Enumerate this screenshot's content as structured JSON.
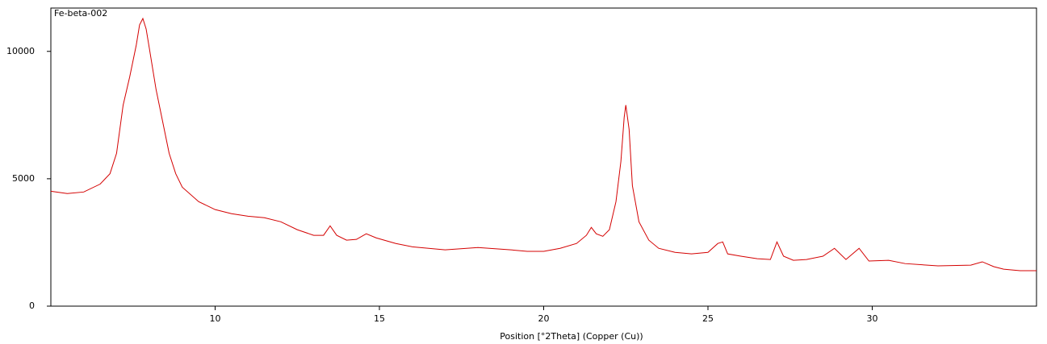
{
  "chart_data": {
    "type": "line",
    "title": "Fe-beta-002",
    "xlabel": "Position [°2Theta] (Copper (Cu))",
    "x": [
      5.0,
      5.5,
      6.0,
      6.5,
      6.8,
      7.0,
      7.2,
      7.4,
      7.6,
      7.7,
      7.8,
      7.9,
      8.0,
      8.2,
      8.4,
      8.6,
      8.8,
      9.0,
      9.5,
      10.0,
      10.5,
      11.0,
      11.5,
      12.0,
      12.5,
      13.0,
      13.3,
      13.5,
      13.7,
      14.0,
      14.3,
      14.6,
      14.9,
      15.5,
      16.0,
      17.0,
      18.0,
      19.0,
      19.5,
      20.0,
      20.5,
      21.0,
      21.3,
      21.45,
      21.6,
      21.8,
      22.0,
      22.2,
      22.35,
      22.45,
      22.5,
      22.6,
      22.7,
      22.9,
      23.2,
      23.5,
      24.0,
      24.5,
      25.0,
      25.3,
      25.45,
      25.6,
      26.0,
      26.5,
      26.9,
      27.1,
      27.3,
      27.6,
      28.0,
      28.5,
      28.85,
      29.2,
      29.6,
      29.9,
      30.5,
      31.0,
      32.0,
      33.0,
      33.35,
      33.7,
      34.0,
      34.5,
      35.0
    ],
    "series": [
      {
        "name": "Fe-beta-002",
        "color": "#d40000",
        "values": [
          4510,
          4420,
          4480,
          4790,
          5200,
          6000,
          7890,
          9000,
          10250,
          11040,
          11290,
          10880,
          10100,
          8520,
          7260,
          6000,
          5200,
          4670,
          4100,
          3790,
          3630,
          3530,
          3470,
          3310,
          3000,
          2780,
          2780,
          3150,
          2780,
          2590,
          2620,
          2840,
          2680,
          2460,
          2330,
          2210,
          2300,
          2210,
          2150,
          2150,
          2270,
          2460,
          2780,
          3090,
          2840,
          2740,
          3000,
          4100,
          5680,
          7410,
          7890,
          6940,
          4730,
          3310,
          2590,
          2270,
          2110,
          2050,
          2110,
          2460,
          2520,
          2050,
          1960,
          1860,
          1830,
          2520,
          1960,
          1800,
          1830,
          1960,
          2270,
          1830,
          2270,
          1770,
          1800,
          1670,
          1580,
          1610,
          1740,
          1550,
          1450,
          1390,
          1390
        ]
      }
    ],
    "xlim": [
      5,
      35
    ],
    "xticks": [
      10,
      15,
      20,
      25,
      30
    ],
    "ylim": [
      0,
      11700
    ],
    "yticks": [
      0,
      5000,
      10000
    ]
  }
}
